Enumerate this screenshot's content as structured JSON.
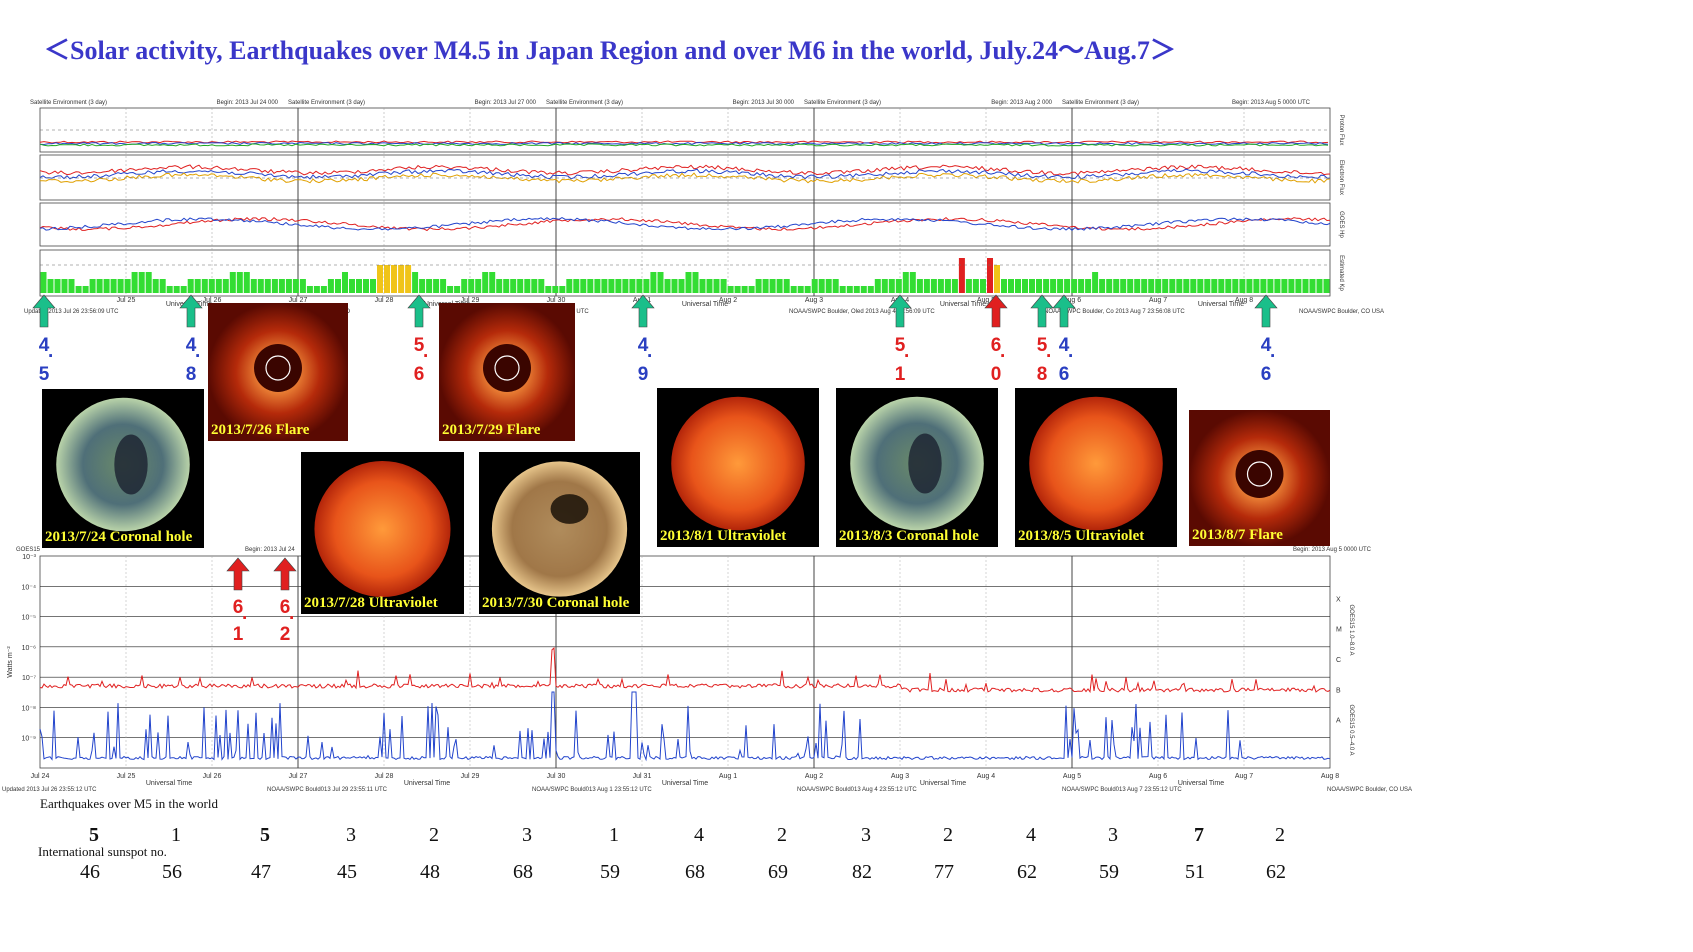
{
  "title": "＜Solar activity, Earthquakes over M4.5 in Japan Region and over M6 in the world, July.24～Aug.7＞",
  "top_panel": {
    "headers": [
      {
        "left": "Satellite Environment (3 day)",
        "right": "Begin:  2013 Jul 24 000"
      },
      {
        "left": "Satellite Environment (3 day)",
        "right": "Begin:  2013 Jul 27 000"
      },
      {
        "left": "Satellite Environment (3 day)",
        "right": "Begin:  2013 Jul 30 000"
      },
      {
        "left": "Satellite Environment (3 day)",
        "right": "Begin:  2013 Aug 2 000"
      },
      {
        "left": "Satellite Environment (3 day)",
        "right": "Begin:  2013 Aug 5 0000 UTC"
      }
    ],
    "right_labels": [
      "Proton Flux",
      "Electron Flux",
      "GOES Hp",
      "Estimated Kp"
    ],
    "day_ticks": [
      "Jul 25",
      "Jul 26",
      "Jul 27",
      "Jul 28",
      "Jul 29",
      "Jul 30",
      "Aug 1",
      "Aug 2",
      "Aug 3",
      "Aug 4",
      "Aug 5",
      "Aug 6",
      "Aug 7",
      "Aug 8"
    ],
    "axis_label": "Universal Time",
    "footers": [
      "Updated 2013 Jul 26 23:56:09 UTC",
      "NOAA/SWPC Boulder, CO",
      "Aug 1 23:56:10 UTC",
      "NOAA/SWPC Boulder, Oled 2013 Aug 4 23:56:09 UTC",
      "NOAA/SWPC Boulder, Co 2013 Aug 7 23:56:08 UTC",
      "NOAA/SWPC Boulder, CO USA"
    ]
  },
  "xray_panel": {
    "header_left": "GOES15",
    "header_begin": "Begin:  2013 Jul 24",
    "header_right": "Begin:  2013 Aug 5 0000 UTC",
    "y_label": "Watts m⁻²",
    "y_ticks": [
      "10⁻³",
      "10⁻⁴",
      "10⁻⁵",
      "10⁻⁶",
      "10⁻⁷",
      "10⁻⁸",
      "10⁻⁹"
    ],
    "classes": [
      "X",
      "M",
      "C",
      "B",
      "A"
    ],
    "right_labels": [
      "GOES15 1.0–8.0 A",
      "GOES15 0.5–4.0 A"
    ],
    "day_ticks": [
      "Jul 24",
      "Jul 25",
      "Jul 26",
      "Jul 27",
      "Jul 28",
      "Jul 29",
      "Jul 30",
      "Jul 31",
      "Aug 1",
      "Aug 2",
      "Aug 3",
      "Aug 4",
      "Aug 5",
      "Aug 6",
      "Aug 7",
      "Aug 8"
    ],
    "axis_label": "Universal Time",
    "footers": [
      "Updated 2013 Jul 26 23:55:12 UTC",
      "NOAA/SWPC Bould013 Jul 29 23:55:11 UTC",
      "NOAA/SWPC Bould013 Aug 1 23:55:12 UTC",
      "NOAA/SWPC Bould013 Aug 4 23:55:12 UTC",
      "NOAA/SWPC Bould013 Aug 7 23:55:12 UTC",
      "NOAA/SWPC Boulder, CO USA"
    ]
  },
  "images": [
    {
      "caption": "2013/7/24 Coronal hole",
      "kind": "coronal-hole-green"
    },
    {
      "caption": "2013/7/26 Flare",
      "kind": "coronagraph"
    },
    {
      "caption": "2013/7/28 Ultraviolet",
      "kind": "uv-sun"
    },
    {
      "caption": "2013/7/29 Flare",
      "kind": "coronagraph"
    },
    {
      "caption": "2013/7/30 Coronal hole",
      "kind": "coronal-hole-gold"
    },
    {
      "caption": "2013/8/1 Ultraviolet",
      "kind": "uv-sun"
    },
    {
      "caption": "2013/8/3 Coronal hole",
      "kind": "coronal-hole-green"
    },
    {
      "caption": "2013/8/5 Ultraviolet",
      "kind": "uv-sun"
    },
    {
      "caption": "2013/8/7 Flare",
      "kind": "coronagraph"
    }
  ],
  "top_markers": [
    {
      "mag": [
        "4",
        "5"
      ],
      "color": "#2a3fc1",
      "arrow": "#1abf8a"
    },
    {
      "mag": [
        "4",
        "8"
      ],
      "color": "#2a3fc1",
      "arrow": "#1abf8a"
    },
    {
      "mag": [
        "5",
        "6"
      ],
      "color": "#e02020",
      "arrow": "#1abf8a"
    },
    {
      "mag": [
        "4",
        "9"
      ],
      "color": "#2a3fc1",
      "arrow": "#1abf8a"
    },
    {
      "mag": [
        "5",
        "1"
      ],
      "color": "#e02020",
      "arrow": "#1abf8a"
    },
    {
      "mag": [
        "6",
        "0"
      ],
      "color": "#e02020",
      "arrow": "#e02020"
    },
    {
      "mag": [
        "5",
        "8"
      ],
      "color": "#e02020",
      "arrow": "#1abf8a"
    },
    {
      "mag": [
        "4",
        "6"
      ],
      "color": "#2a3fc1",
      "arrow": "#1abf8a"
    },
    {
      "mag": [
        "4",
        "6"
      ],
      "color": "#2a3fc1",
      "arrow": "#1abf8a"
    }
  ],
  "xray_markers": [
    {
      "mag": [
        "6",
        "1"
      ],
      "color": "#e02020"
    },
    {
      "mag": [
        "6",
        "2"
      ],
      "color": "#e02020"
    }
  ],
  "chart_data": {
    "type": "table",
    "rows": [
      {
        "label": "Earthquakes over M5 in the world",
        "values": [
          5,
          1,
          5,
          3,
          2,
          3,
          1,
          4,
          2,
          3,
          2,
          4,
          3,
          7,
          2
        ],
        "highlight_color": "#e02020",
        "highlighted": [
          true,
          false,
          true,
          false,
          false,
          false,
          false,
          false,
          false,
          false,
          false,
          false,
          false,
          true,
          false
        ]
      },
      {
        "label": "International sunspot no.",
        "values": [
          46,
          56,
          47,
          45,
          48,
          68,
          59,
          68,
          69,
          82,
          77,
          62,
          59,
          51,
          62
        ]
      }
    ],
    "kp_index": [
      3,
      2,
      2,
      2,
      2,
      1,
      1,
      2,
      2,
      2,
      2,
      2,
      2,
      3,
      3,
      3,
      2,
      2,
      1,
      1,
      1,
      2,
      2,
      2,
      2,
      2,
      2,
      3,
      3,
      3,
      2,
      2,
      2,
      2,
      2,
      2,
      2,
      2,
      1,
      1,
      1,
      2,
      2,
      3,
      2,
      2,
      2,
      2,
      4,
      4,
      4,
      4,
      4,
      3,
      2,
      2,
      2,
      2,
      1,
      1,
      2,
      2,
      2,
      3,
      3,
      2,
      2,
      2,
      2,
      2,
      2,
      2,
      1,
      1,
      1,
      2,
      2,
      2,
      2,
      2,
      2,
      2,
      2,
      2,
      2,
      2,
      2,
      3,
      3,
      2,
      2,
      2,
      3,
      3,
      2,
      2,
      2,
      2,
      1,
      1,
      1,
      1,
      2,
      2,
      2,
      2,
      2,
      1,
      1,
      1,
      2,
      2,
      2,
      2,
      1,
      1,
      1,
      1,
      1,
      2,
      2,
      2,
      2,
      3,
      3,
      2,
      2,
      2,
      2,
      2,
      2,
      5,
      2,
      2,
      2,
      5,
      4,
      2,
      2,
      2,
      2,
      2,
      2,
      2,
      2,
      2,
      2,
      2,
      2,
      2,
      3,
      2,
      2,
      2,
      2,
      2,
      2,
      2,
      2,
      2,
      2,
      2,
      2,
      2,
      2,
      2,
      2,
      2,
      2,
      2,
      2,
      2,
      2,
      2,
      2,
      2,
      2,
      2,
      2,
      2,
      2,
      2,
      2,
      2
    ],
    "kp_colors": {
      "quiet": "#33dd33",
      "active": "#f0c419",
      "storm": "#e02020"
    }
  }
}
